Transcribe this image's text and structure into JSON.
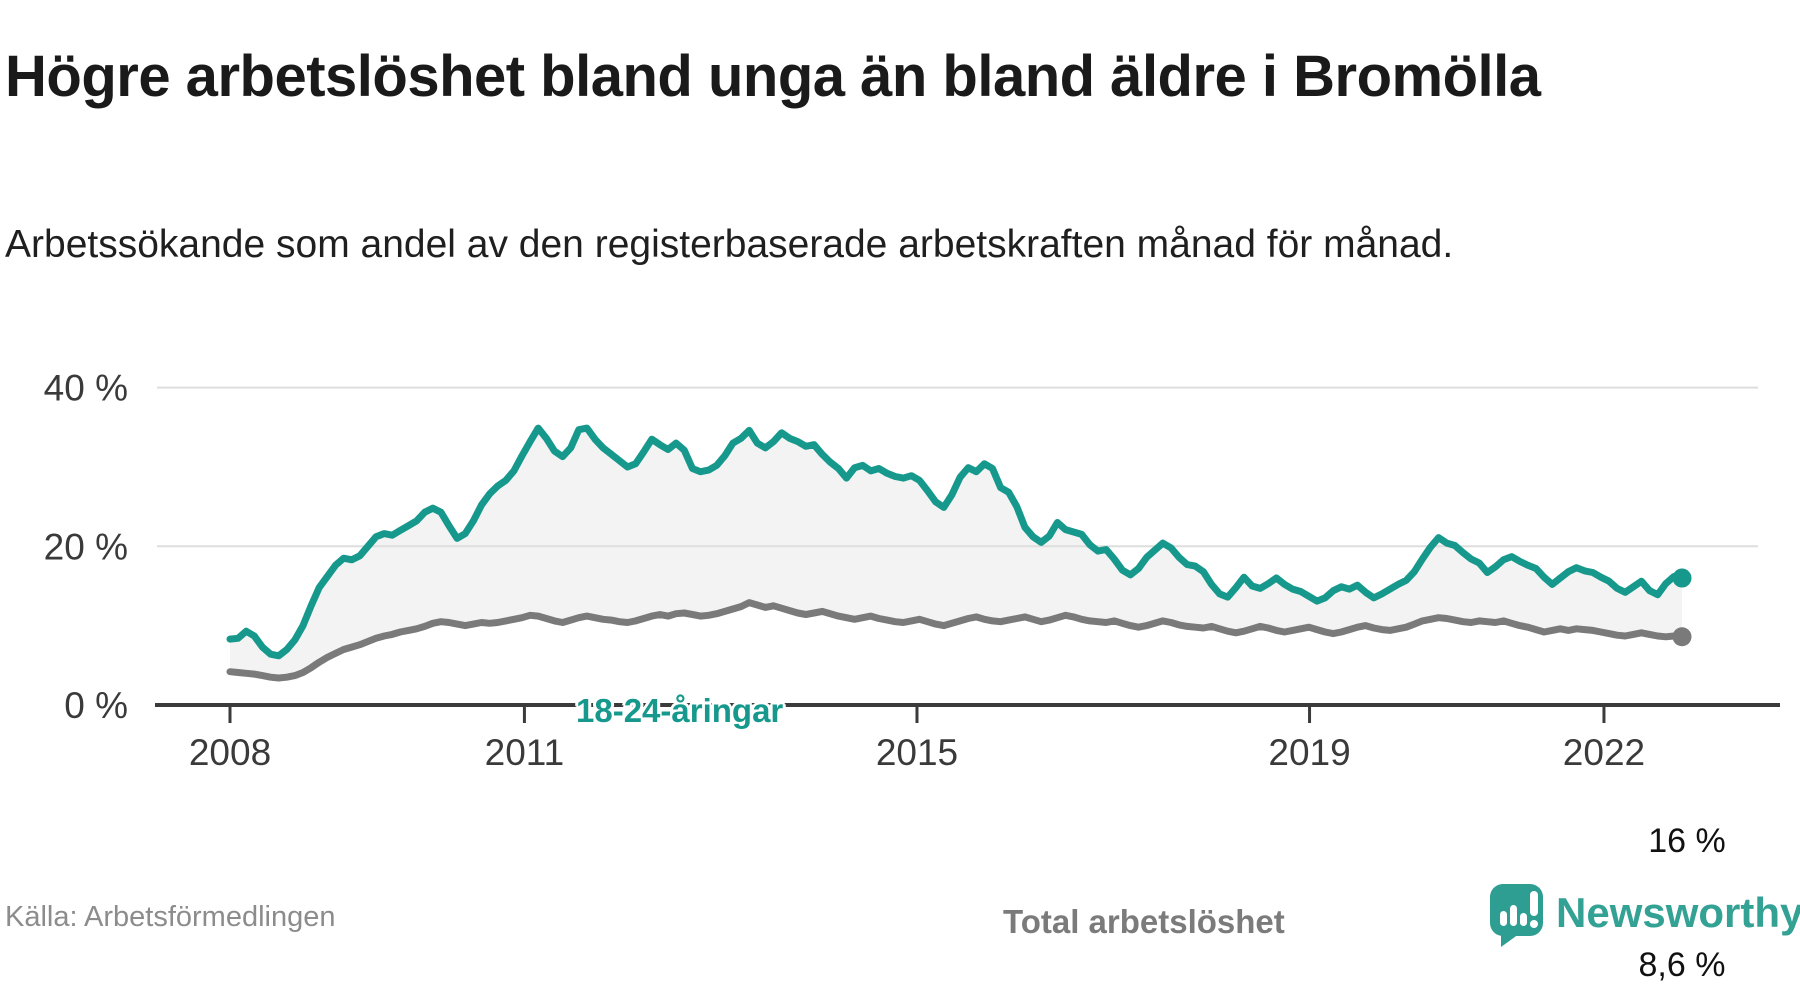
{
  "page": {
    "title": "Högre arbetslöshet bland unga än bland äldre i Bromölla",
    "subtitle": "Arbetssökande som andel av den registerbaserade arbetskraften månad för månad.",
    "source": "Källa: Arbetsförmedlingen",
    "brand": "Newsworthy"
  },
  "colors": {
    "youth_line": "#16998c",
    "total_line": "#7a7a7a",
    "area_fill": "#f3f3f3",
    "grid": "#dedede",
    "axis": "#3b3b3b",
    "tick_text": "#3a3a3a",
    "brand_teal": "#34a195"
  },
  "chart_data": {
    "type": "line",
    "title": "Högre arbetslöshet bland unga än bland äldre i Bromölla",
    "xlabel": "",
    "ylabel": "Arbetssökande som andel av den registerbaserade arbetskraften",
    "x_unit": "month",
    "x_range": [
      "2008-01",
      "2022-12"
    ],
    "ylim": [
      0,
      44
    ],
    "grid": "horizontal",
    "y_ticks": [
      {
        "label": "40 %",
        "value": 40
      },
      {
        "label": "20 %",
        "value": 20
      },
      {
        "label": "0 %",
        "value": 0
      }
    ],
    "x_ticks": [
      2008,
      2011,
      2015,
      2019,
      2022
    ],
    "series": [
      {
        "name": "18-24-åringar",
        "color": "#16998c",
        "end_label": "16 %",
        "end_value": 16.0,
        "values": [
          8.3,
          8.4,
          9.3,
          8.7,
          7.3,
          6.4,
          6.2,
          7.0,
          8.2,
          10.0,
          12.5,
          14.8,
          16.2,
          17.6,
          18.5,
          18.3,
          18.8,
          20.0,
          21.2,
          21.6,
          21.4,
          22.0,
          22.6,
          23.2,
          24.3,
          24.8,
          24.3,
          22.6,
          21.0,
          21.6,
          23.2,
          25.2,
          26.6,
          27.6,
          28.3,
          29.5,
          31.4,
          33.2,
          34.9,
          33.6,
          32.0,
          31.3,
          32.4,
          34.7,
          34.9,
          33.5,
          32.4,
          31.6,
          30.8,
          30.0,
          30.4,
          31.9,
          33.5,
          32.8,
          32.2,
          33.0,
          32.1,
          29.8,
          29.4,
          29.6,
          30.2,
          31.4,
          33.0,
          33.6,
          34.6,
          33.0,
          32.4,
          33.2,
          34.3,
          33.6,
          33.2,
          32.6,
          32.8,
          31.6,
          30.6,
          29.8,
          28.6,
          29.9,
          30.2,
          29.5,
          29.8,
          29.2,
          28.8,
          28.6,
          28.9,
          28.3,
          27.0,
          25.6,
          24.9,
          26.5,
          28.7,
          29.9,
          29.4,
          30.4,
          29.8,
          27.4,
          26.8,
          25.0,
          22.4,
          21.2,
          20.5,
          21.3,
          23.0,
          22.1,
          21.8,
          21.5,
          20.2,
          19.4,
          19.6,
          18.4,
          17.0,
          16.4,
          17.2,
          18.6,
          19.5,
          20.4,
          19.8,
          18.6,
          17.7,
          17.5,
          16.8,
          15.2,
          14.0,
          13.6,
          14.8,
          16.1,
          15.0,
          14.7,
          15.3,
          16.0,
          15.2,
          14.6,
          14.3,
          13.7,
          13.1,
          13.5,
          14.4,
          14.9,
          14.6,
          15.1,
          14.2,
          13.5,
          14.0,
          14.6,
          15.2,
          15.7,
          16.8,
          18.4,
          19.9,
          21.1,
          20.4,
          20.1,
          19.2,
          18.4,
          17.9,
          16.7,
          17.4,
          18.3,
          18.7,
          18.1,
          17.6,
          17.2,
          16.1,
          15.2,
          16.0,
          16.8,
          17.3,
          16.9,
          16.7,
          16.1,
          15.6,
          14.7,
          14.2,
          14.9,
          15.6,
          14.4,
          13.9,
          15.3,
          16.2,
          16.0
        ]
      },
      {
        "name": "Total arbetslöshet",
        "color": "#7a7a7a",
        "end_label": "8,6 %",
        "end_value": 8.6,
        "values": [
          4.2,
          4.1,
          4.0,
          3.9,
          3.7,
          3.5,
          3.4,
          3.5,
          3.7,
          4.1,
          4.7,
          5.4,
          6.0,
          6.5,
          7.0,
          7.3,
          7.6,
          8.0,
          8.4,
          8.7,
          8.9,
          9.2,
          9.4,
          9.6,
          9.9,
          10.3,
          10.5,
          10.4,
          10.2,
          10.0,
          10.2,
          10.4,
          10.3,
          10.4,
          10.6,
          10.8,
          11.0,
          11.3,
          11.2,
          10.9,
          10.6,
          10.4,
          10.7,
          11.0,
          11.2,
          11.0,
          10.8,
          10.7,
          10.5,
          10.4,
          10.6,
          10.9,
          11.2,
          11.4,
          11.2,
          11.5,
          11.6,
          11.4,
          11.2,
          11.3,
          11.5,
          11.8,
          12.1,
          12.4,
          12.9,
          12.6,
          12.3,
          12.5,
          12.2,
          11.9,
          11.6,
          11.4,
          11.6,
          11.8,
          11.5,
          11.2,
          11.0,
          10.8,
          11.0,
          11.2,
          10.9,
          10.7,
          10.5,
          10.4,
          10.6,
          10.8,
          10.5,
          10.2,
          10.0,
          10.3,
          10.6,
          10.9,
          11.1,
          10.8,
          10.6,
          10.5,
          10.7,
          10.9,
          11.1,
          10.8,
          10.5,
          10.7,
          11.0,
          11.3,
          11.1,
          10.8,
          10.6,
          10.5,
          10.4,
          10.6,
          10.3,
          10.0,
          9.8,
          10.0,
          10.3,
          10.6,
          10.4,
          10.1,
          9.9,
          9.8,
          9.7,
          9.9,
          9.6,
          9.3,
          9.1,
          9.3,
          9.6,
          9.9,
          9.7,
          9.4,
          9.2,
          9.4,
          9.6,
          9.8,
          9.5,
          9.2,
          9.0,
          9.2,
          9.5,
          9.8,
          10.0,
          9.7,
          9.5,
          9.4,
          9.6,
          9.8,
          10.2,
          10.6,
          10.8,
          11.0,
          10.9,
          10.7,
          10.5,
          10.4,
          10.6,
          10.5,
          10.4,
          10.6,
          10.3,
          10.0,
          9.8,
          9.5,
          9.2,
          9.4,
          9.6,
          9.4,
          9.6,
          9.5,
          9.4,
          9.2,
          9.0,
          8.8,
          8.7,
          8.9,
          9.1,
          8.9,
          8.7,
          8.6,
          8.7,
          8.6
        ]
      }
    ]
  }
}
